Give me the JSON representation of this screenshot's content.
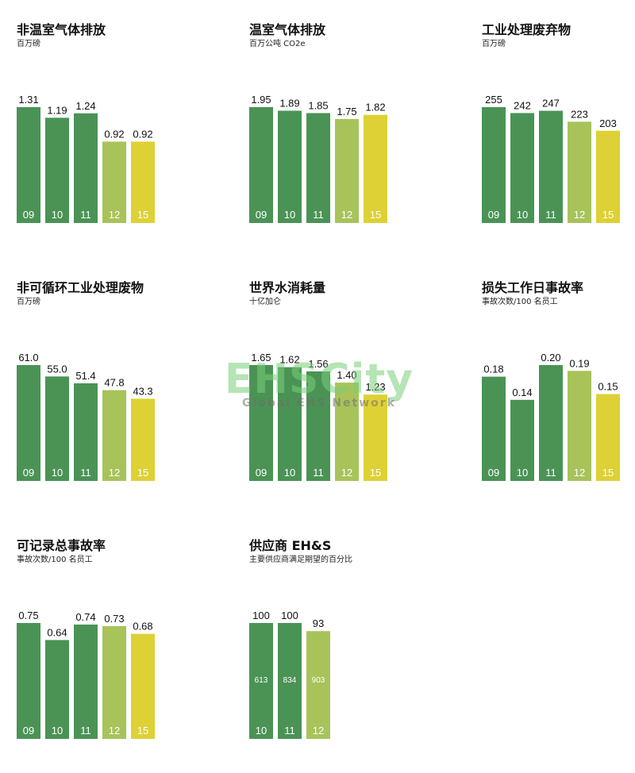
{
  "colors": {
    "dark_green": "#4a9355",
    "light_green": "#a7c35a",
    "yellow": "#ddd135"
  },
  "watermark": {
    "text": "EHSCity",
    "subtext": "Global EHS Network"
  },
  "chart_data": [
    {
      "type": "bar",
      "title": "非温室气体排放",
      "subtitle": "百万磅",
      "categories": [
        "09",
        "10",
        "11",
        "12",
        "15"
      ],
      "values": [
        1.31,
        1.19,
        1.24,
        0.92,
        0.92
      ],
      "value_labels": [
        "1.31",
        "1.19",
        "1.24",
        "0.92",
        "0.92"
      ],
      "bar_colors": [
        "dark_green",
        "dark_green",
        "dark_green",
        "light_green",
        "yellow"
      ],
      "ylim": [
        0,
        1.31
      ]
    },
    {
      "type": "bar",
      "title": "温室气体排放",
      "subtitle": "百万公吨 CO2e",
      "categories": [
        "09",
        "10",
        "11",
        "12",
        "15"
      ],
      "values": [
        1.95,
        1.89,
        1.85,
        1.75,
        1.82
      ],
      "value_labels": [
        "1.95",
        "1.89",
        "1.85",
        "1.75",
        "1.82"
      ],
      "bar_colors": [
        "dark_green",
        "dark_green",
        "dark_green",
        "light_green",
        "yellow"
      ],
      "ylim": [
        0,
        1.95
      ]
    },
    {
      "type": "bar",
      "title": "工业处理废弃物",
      "subtitle": "百万磅",
      "categories": [
        "09",
        "10",
        "11",
        "12",
        "15"
      ],
      "values": [
        255,
        242,
        247,
        223,
        203
      ],
      "value_labels": [
        "255",
        "242",
        "247",
        "223",
        "203"
      ],
      "bar_colors": [
        "dark_green",
        "dark_green",
        "dark_green",
        "light_green",
        "yellow"
      ],
      "ylim": [
        0,
        255
      ]
    },
    {
      "type": "bar",
      "title": "非可循环工业处理废物",
      "subtitle": "百万磅",
      "categories": [
        "09",
        "10",
        "11",
        "12",
        "15"
      ],
      "values": [
        61.0,
        55.0,
        51.4,
        47.8,
        43.3
      ],
      "value_labels": [
        "61.0",
        "55.0",
        "51.4",
        "47.8",
        "43.3"
      ],
      "bar_colors": [
        "dark_green",
        "dark_green",
        "dark_green",
        "light_green",
        "yellow"
      ],
      "ylim": [
        0,
        61.0
      ]
    },
    {
      "type": "bar",
      "title": "世界水消耗量",
      "subtitle": "十亿加仑",
      "categories": [
        "09",
        "10",
        "11",
        "12",
        "15"
      ],
      "values": [
        1.65,
        1.62,
        1.56,
        1.4,
        1.23
      ],
      "value_labels": [
        "1.65",
        "1.62",
        "1.56",
        "1.40",
        "1.23"
      ],
      "bar_colors": [
        "dark_green",
        "dark_green",
        "dark_green",
        "light_green",
        "yellow"
      ],
      "ylim": [
        0,
        1.65
      ]
    },
    {
      "type": "bar",
      "title": "损失工作日事故率",
      "subtitle": "事故次数/100 名员工",
      "categories": [
        "09",
        "10",
        "11",
        "12",
        "15"
      ],
      "values": [
        0.18,
        0.14,
        0.2,
        0.19,
        0.15
      ],
      "value_labels": [
        "0.18",
        "0.14",
        "0.20",
        "0.19",
        "0.15"
      ],
      "bar_colors": [
        "dark_green",
        "dark_green",
        "dark_green",
        "light_green",
        "yellow"
      ],
      "ylim": [
        0,
        0.2
      ]
    },
    {
      "type": "bar",
      "title": "可记录总事故率",
      "subtitle": "事故次数/100 名员工",
      "categories": [
        "09",
        "10",
        "11",
        "12",
        "15"
      ],
      "values": [
        0.75,
        0.64,
        0.74,
        0.73,
        0.68
      ],
      "value_labels": [
        "0.75",
        "0.64",
        "0.74",
        "0.73",
        "0.68"
      ],
      "bar_colors": [
        "dark_green",
        "dark_green",
        "dark_green",
        "light_green",
        "yellow"
      ],
      "ylim": [
        0,
        0.75
      ]
    },
    {
      "type": "bar",
      "title": "供应商 EH&S",
      "subtitle": "主要供应商满足期望的百分比",
      "categories": [
        "10",
        "11",
        "12"
      ],
      "values": [
        100,
        100,
        93
      ],
      "value_labels": [
        "100",
        "100",
        "93"
      ],
      "inner_labels": [
        "613",
        "834",
        "903"
      ],
      "bar_colors": [
        "dark_green",
        "dark_green",
        "light_green"
      ],
      "ylim": [
        0,
        100
      ]
    }
  ]
}
